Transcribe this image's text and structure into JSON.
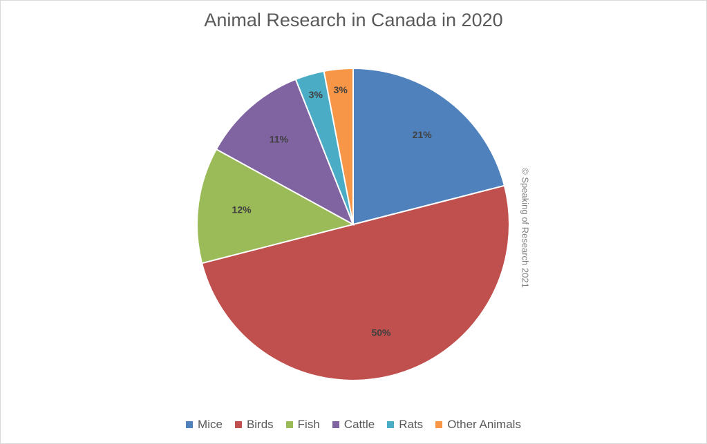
{
  "chart_data": {
    "type": "pie",
    "title": "Animal Research in Canada in 2020",
    "categories": [
      "Mice",
      "Birds",
      "Fish",
      "Cattle",
      "Rats",
      "Other Animals"
    ],
    "values": [
      21,
      50,
      12,
      11,
      3,
      3
    ],
    "data_labels": [
      "21%",
      "50%",
      "12%",
      "11%",
      "3%",
      "3%"
    ],
    "colors": [
      "#4f81bd",
      "#c0504d",
      "#9bbb59",
      "#8064a2",
      "#4bacc6",
      "#f79646"
    ],
    "legend_position": "bottom",
    "start_angle": "12 o'clock, clockwise"
  },
  "watermark": "© Speaking of Research 2021"
}
